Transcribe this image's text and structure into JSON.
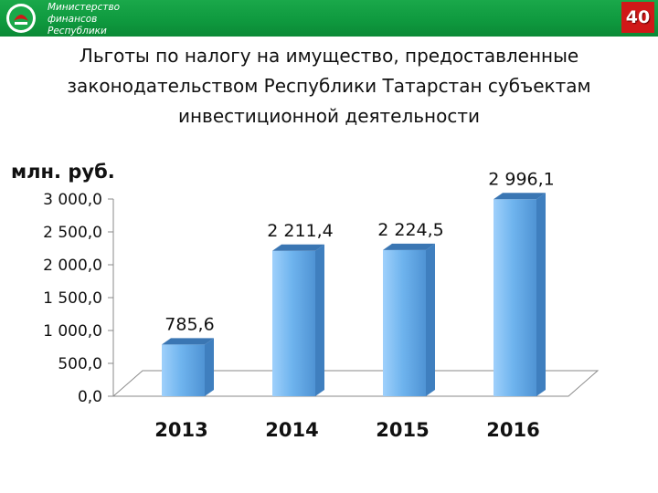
{
  "header": {
    "org_lines": [
      "Министерство",
      "финансов",
      "Республики"
    ],
    "page_number": "40",
    "colors": {
      "bar": "#1aa84a",
      "badge": "#d01818"
    }
  },
  "title_lines": [
    "Льготы по налогу на имущество, предоставленные",
    "законодательством Республики Татарстан субъектам",
    "инвестиционной деятельности"
  ],
  "chart_data": {
    "type": "bar",
    "title": "Льготы по налогу на имущество, предоставленные законодательством Республики Татарстан субъектам инвестиционной деятельности",
    "ylabel": "млн. руб.",
    "xlabel": "",
    "categories": [
      "2013",
      "2014",
      "2015",
      "2016"
    ],
    "values": [
      785.6,
      2211.4,
      2224.5,
      2996.1
    ],
    "data_labels": [
      "785,6",
      "2 211,4",
      "2 224,5",
      "2 996,1"
    ],
    "ylim": [
      0,
      3000
    ],
    "yticks": [
      0,
      500,
      1000,
      1500,
      2000,
      2500,
      3000
    ],
    "ytick_labels": [
      "0,0",
      "500,0",
      "1 000,0",
      "1 500,0",
      "2 000,0",
      "2 500,0",
      "3 000,0"
    ],
    "grid": false,
    "legend": "none",
    "bar_color": "#6fb4ee",
    "bar_style": "3d"
  }
}
